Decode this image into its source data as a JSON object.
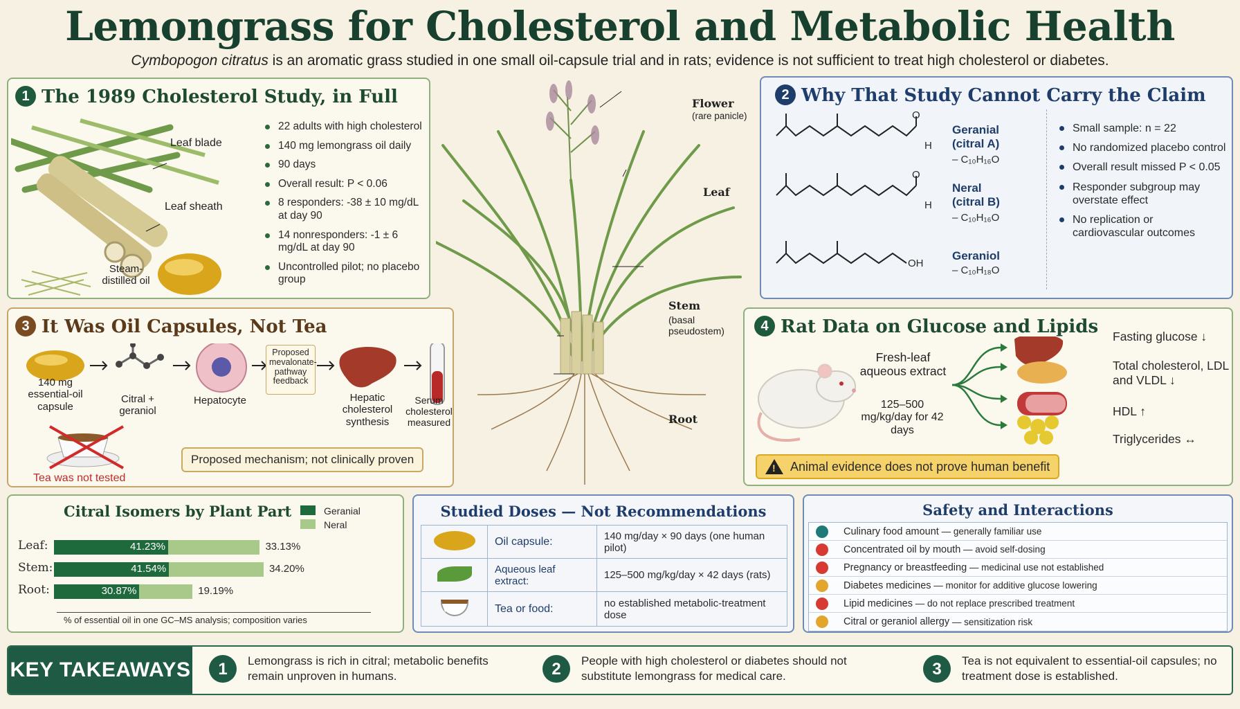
{
  "header": {
    "title": "Lemongrass for Cholesterol and Metabolic Health",
    "subtitle_species": "Cymbopogon citratus",
    "subtitle_rest": " is an aromatic grass studied in one small oil-capsule trial and in rats; evidence is not sufficient to treat high cholesterol or diabetes."
  },
  "panel1": {
    "num": "1",
    "title": "The 1989 Cholesterol Study, in Full",
    "labels": {
      "leaf_blade": "Leaf blade",
      "leaf_sheath": "Leaf sheath",
      "oil": "Steam-distilled oil"
    },
    "bullets": [
      "22 adults with high cholesterol",
      "140 mg lemongrass oil daily",
      "90 days",
      "Overall result: P < 0.06",
      "8 responders: -38 ± 10 mg/dL at day 90",
      "14 nonresponders: -1 ± 6 mg/dL at day 90",
      "Uncontrolled pilot; no placebo group"
    ]
  },
  "plant": {
    "flower": "Flower",
    "flower_sub": "(rare panicle)",
    "leaf": "Leaf",
    "stem": "Stem",
    "stem_sub": "(basal pseudostem)",
    "root": "Root"
  },
  "panel2": {
    "num": "2",
    "title": "Why That Study Cannot Carry the Claim",
    "molecules": [
      {
        "name": "Geranial (citral A)",
        "formula": "– C₁₀H₁₆O"
      },
      {
        "name": "Neral (citral B)",
        "formula": "– C₁₀H₁₆O"
      },
      {
        "name": "Geraniol",
        "formula": "– C₁₀H₁₈O"
      }
    ],
    "atom_o": "O",
    "atom_h": "H",
    "atom_oh": "OH",
    "bullets": [
      "Small sample: n = 22",
      "No randomized placebo control",
      "Overall result missed P < 0.05",
      "Responder subgroup may overstate effect",
      "No replication or cardiovascular outcomes"
    ]
  },
  "panel3": {
    "num": "3",
    "title": "It Was Oil Capsules, Not Tea",
    "steps": [
      "140 mg essential-oil capsule",
      "Citral + geraniol",
      "Hepatocyte",
      "Proposed mevalonate-pathway feedback",
      "Hepatic cholesterol synthesis",
      "Serum cholesterol measured"
    ],
    "tea_note": "Tea was not tested",
    "mechanism": "Proposed mechanism; not clinically proven"
  },
  "panel4": {
    "num": "4",
    "title": "Rat Data on Glucose and Lipids",
    "extract": "Fresh-leaf aqueous extract",
    "dose": "125–500 mg/kg/day for 42 days",
    "outcomes": [
      "Fasting glucose ↓",
      "Total cholesterol, LDL and VLDL ↓",
      "HDL ↑",
      "Triglycerides ↔"
    ],
    "warning": "Animal evidence does not prove human benefit"
  },
  "chart_data": {
    "type": "bar",
    "title": "Citral Isomers by Plant Part",
    "categories": [
      "Leaf:",
      "Stem:",
      "Root:"
    ],
    "series": [
      {
        "name": "Geranial",
        "values": [
          41.23,
          41.54,
          30.87
        ],
        "labels": [
          "41.23%",
          "41.54%",
          "30.87%"
        ]
      },
      {
        "name": "Neral",
        "values": [
          33.13,
          34.2,
          19.19
        ],
        "labels": [
          "33.13%",
          "34.20%",
          "19.19%"
        ]
      }
    ],
    "stacked": true,
    "footnote": "% of essential oil in one GC–MS analysis; composition varies",
    "colors": {
      "Geranial": "#1f6a3c",
      "Neral": "#a8c98a"
    }
  },
  "doses": {
    "title": "Studied Doses — Not Recommendations",
    "rows": [
      {
        "label": "Oil capsule:",
        "value": "140 mg/day × 90 days (one human pilot)"
      },
      {
        "label": "Aqueous leaf extract:",
        "value": "125–500 mg/kg/day × 42 days (rats)"
      },
      {
        "label": "Tea or food:",
        "value": "no established metabolic-treatment dose"
      }
    ]
  },
  "safety": {
    "title": "Safety and Interactions",
    "rows": [
      {
        "item": "Culinary food amount",
        "note": " — generally familiar use",
        "color": "#1e7a78"
      },
      {
        "item": "Concentrated oil by mouth",
        "note": " — avoid self-dosing",
        "color": "#d63a32"
      },
      {
        "item": "Pregnancy or breastfeeding",
        "note": " — medicinal use not established",
        "color": "#d63a32"
      },
      {
        "item": "Diabetes medicines",
        "note": " — monitor for additive glucose lowering",
        "color": "#e3a62c"
      },
      {
        "item": "Lipid medicines",
        "note": " — do not replace prescribed treatment",
        "color": "#d63a32"
      },
      {
        "item": "Citral or geraniol allergy",
        "note": " — sensitization risk",
        "color": "#e3a62c"
      }
    ]
  },
  "takeaways": {
    "label": "KEY TAKEAWAYS",
    "items": [
      {
        "num": "1",
        "text": "Lemongrass is rich in citral; metabolic benefits remain unproven in humans."
      },
      {
        "num": "2",
        "text": "People with high cholesterol or diabetes should not substitute lemongrass for medical care."
      },
      {
        "num": "3",
        "text": "Tea is not equivalent to essential-oil capsules; no treatment dose is established."
      }
    ]
  }
}
